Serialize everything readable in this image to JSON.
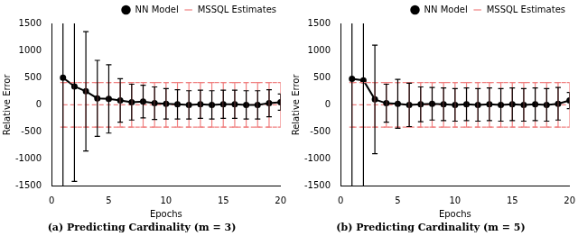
{
  "chart_data": [
    {
      "type": "line",
      "title": "(a) Predicting Cardinality (m = 3)",
      "xlabel": "Epochs",
      "ylabel": "Relative Error",
      "x": [
        1,
        2,
        3,
        4,
        5,
        6,
        7,
        8,
        9,
        10,
        11,
        12,
        13,
        14,
        15,
        16,
        17,
        18,
        19,
        20
      ],
      "series": [
        {
          "name": "NN Model",
          "color": "#000000",
          "marker": "circle",
          "line_style": "solid",
          "values": [
            500,
            340,
            250,
            120,
            110,
            80,
            50,
            60,
            30,
            20,
            10,
            0,
            10,
            0,
            10,
            10,
            0,
            0,
            30,
            50
          ],
          "error": [
            2500,
            1750,
            1100,
            700,
            630,
            400,
            330,
            300,
            300,
            280,
            270,
            260,
            260,
            260,
            260,
            260,
            260,
            260,
            250,
            150
          ]
        },
        {
          "name": "MSSQL Estimates",
          "color": "#f08080",
          "line_style": "dashed",
          "values": [
            0,
            0,
            0,
            0,
            0,
            0,
            0,
            0,
            0,
            0,
            0,
            0,
            0,
            0,
            0,
            0,
            0,
            0,
            0,
            0
          ],
          "error": [
            410,
            410,
            410,
            410,
            410,
            410,
            410,
            410,
            410,
            410,
            410,
            410,
            410,
            410,
            410,
            410,
            410,
            410,
            410,
            410
          ]
        }
      ],
      "xlim": [
        0,
        20
      ],
      "xticks": [
        0,
        5,
        10,
        15,
        20
      ],
      "ylim": [
        -1500,
        1500
      ],
      "yticks": [
        -1500,
        -1000,
        -500,
        0,
        500,
        1000,
        1500
      ],
      "grid": false,
      "legend": "upper right"
    },
    {
      "type": "line",
      "title": "(b) Predicting Cardinality (m = 5)",
      "xlabel": "Epochs",
      "ylabel": "Relative Error",
      "x": [
        1,
        2,
        3,
        4,
        5,
        6,
        7,
        8,
        9,
        10,
        11,
        12,
        13,
        14,
        15,
        16,
        17,
        18,
        19,
        20
      ],
      "series": [
        {
          "name": "NN Model",
          "color": "#000000",
          "marker": "circle",
          "line_style": "solid",
          "values": [
            480,
            450,
            100,
            30,
            20,
            0,
            10,
            20,
            10,
            0,
            10,
            0,
            10,
            0,
            10,
            0,
            10,
            0,
            20,
            80
          ],
          "error": [
            2500,
            2500,
            1000,
            350,
            450,
            400,
            320,
            300,
            300,
            300,
            300,
            300,
            300,
            300,
            300,
            300,
            300,
            300,
            300,
            150
          ]
        },
        {
          "name": "MSSQL Estimates",
          "color": "#f08080",
          "line_style": "dashed",
          "values": [
            0,
            0,
            0,
            0,
            0,
            0,
            0,
            0,
            0,
            0,
            0,
            0,
            0,
            0,
            0,
            0,
            0,
            0,
            0,
            0
          ],
          "error": [
            410,
            410,
            410,
            410,
            410,
            410,
            410,
            410,
            410,
            410,
            410,
            410,
            410,
            410,
            410,
            410,
            410,
            410,
            410,
            410
          ]
        }
      ],
      "xlim": [
        0,
        20
      ],
      "xticks": [
        0,
        5,
        10,
        15,
        20
      ],
      "ylim": [
        -1500,
        1500
      ],
      "yticks": [
        -1500,
        -1000,
        -500,
        0,
        500,
        1000,
        1500
      ],
      "grid": false,
      "legend": "upper right"
    }
  ]
}
